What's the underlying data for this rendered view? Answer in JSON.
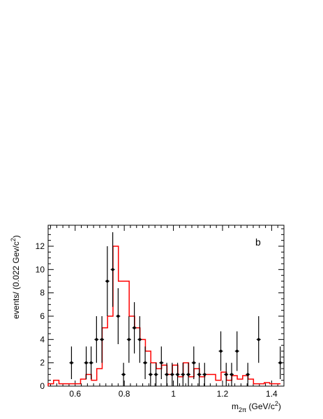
{
  "chart_data": {
    "type": "histogram-with-points",
    "panel_label": "b",
    "xlabel": {
      "main": "m",
      "sub": "2π",
      "unit_prefix": " (GeV/c",
      "unit_sup": "2",
      "unit_suffix": ")"
    },
    "ylabel": {
      "prefix": "events/ (0.022 Gev/c",
      "sup": "2",
      "suffix": ")"
    },
    "xlim": [
      0.49,
      1.45
    ],
    "ylim": [
      0,
      13.8
    ],
    "x_ticks": [
      0.6,
      0.8,
      1.0,
      1.2,
      1.4
    ],
    "x_tick_labels": [
      "0.6",
      "0.8",
      "1",
      "1.2",
      "1.4"
    ],
    "y_ticks": [
      0,
      2,
      4,
      6,
      8,
      10,
      12
    ],
    "y_tick_labels": [
      "0",
      "2",
      "4",
      "6",
      "8",
      "10",
      "12"
    ],
    "series": [
      {
        "kind": "step",
        "color": "#ff0000",
        "edges": [
          0.49,
          0.512,
          0.534,
          0.556,
          0.578,
          0.6,
          0.622,
          0.644,
          0.666,
          0.688,
          0.71,
          0.732,
          0.754,
          0.776,
          0.798,
          0.82,
          0.842,
          0.864,
          0.886,
          0.908,
          0.93,
          0.952,
          0.974,
          0.996,
          1.018,
          1.04,
          1.062,
          1.084,
          1.106,
          1.128,
          1.15,
          1.172,
          1.194,
          1.216,
          1.238,
          1.26,
          1.282,
          1.304,
          1.326,
          1.348,
          1.37,
          1.392,
          1.414,
          1.436
        ],
        "values": [
          0.2,
          0.5,
          0.2,
          0.2,
          0.2,
          0.2,
          0.6,
          1.0,
          0.5,
          1.5,
          5.0,
          6.0,
          12.0,
          9.0,
          9.0,
          6.0,
          5.0,
          4.0,
          3.0,
          2.0,
          1.5,
          1.8,
          1.0,
          1.8,
          0.8,
          2.0,
          0.8,
          1.5,
          0.8,
          1.0,
          1.0,
          0.5,
          1.2,
          0.5,
          0.9,
          0.6,
          0.9,
          0.6,
          0.2,
          0.2,
          0.3,
          0.2,
          0.2
        ]
      },
      {
        "kind": "points",
        "color": "#000000",
        "points": [
          {
            "x": 0.585,
            "y": 2,
            "err": 1.4
          },
          {
            "x": 0.645,
            "y": 2,
            "err": 1.4
          },
          {
            "x": 0.665,
            "y": 2,
            "err": 1.4
          },
          {
            "x": 0.687,
            "y": 4,
            "err": 2.0
          },
          {
            "x": 0.709,
            "y": 4,
            "err": 2.0
          },
          {
            "x": 0.731,
            "y": 9,
            "err": 3.0
          },
          {
            "x": 0.753,
            "y": 10,
            "err": 3.2
          },
          {
            "x": 0.775,
            "y": 6,
            "err": 2.4
          },
          {
            "x": 0.797,
            "y": 1,
            "err": 1.0
          },
          {
            "x": 0.819,
            "y": 4,
            "err": 2.0
          },
          {
            "x": 0.841,
            "y": 5,
            "err": 2.2
          },
          {
            "x": 0.863,
            "y": 4,
            "err": 2.0
          },
          {
            "x": 0.885,
            "y": 2,
            "err": 1.4
          },
          {
            "x": 0.907,
            "y": 1,
            "err": 1.0
          },
          {
            "x": 0.929,
            "y": 1,
            "err": 1.0
          },
          {
            "x": 0.951,
            "y": 2,
            "err": 1.4
          },
          {
            "x": 0.973,
            "y": 1,
            "err": 1.0
          },
          {
            "x": 0.995,
            "y": 1,
            "err": 1.0
          },
          {
            "x": 1.017,
            "y": 1,
            "err": 1.0
          },
          {
            "x": 1.039,
            "y": 1,
            "err": 1.0
          },
          {
            "x": 1.061,
            "y": 1,
            "err": 1.0
          },
          {
            "x": 1.083,
            "y": 2,
            "err": 1.4
          },
          {
            "x": 1.105,
            "y": 1,
            "err": 1.0
          },
          {
            "x": 1.127,
            "y": 1,
            "err": 1.0
          },
          {
            "x": 1.193,
            "y": 3,
            "err": 1.7
          },
          {
            "x": 1.215,
            "y": 1,
            "err": 1.0
          },
          {
            "x": 1.237,
            "y": 1,
            "err": 1.0
          },
          {
            "x": 1.259,
            "y": 3,
            "err": 1.7
          },
          {
            "x": 1.303,
            "y": 1,
            "err": 1.0
          },
          {
            "x": 1.347,
            "y": 4,
            "err": 2.0
          },
          {
            "x": 1.435,
            "y": 2,
            "err": 1.4
          }
        ]
      }
    ]
  }
}
